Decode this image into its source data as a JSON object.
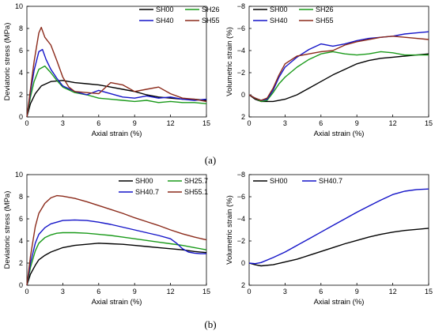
{
  "panel_labels": [
    "(a)",
    "(b)"
  ],
  "chart_data": [
    {
      "type": "line",
      "xlabel": "Axial strain (%)",
      "ylabel": "Deviatoric stress (MPa)",
      "xlim": [
        0,
        15
      ],
      "ylim": [
        0,
        10
      ],
      "xticks": [
        "0",
        "3",
        "6",
        "9",
        "12",
        "15"
      ],
      "yticks": [
        "0",
        "2",
        "4",
        "6",
        "8",
        "10"
      ],
      "grid": false,
      "legend": "top-right, two columns",
      "series": [
        {
          "name": "SH00",
          "color": "#000000",
          "x": [
            0,
            0.3,
            0.7,
            1.2,
            2,
            3,
            4,
            5,
            6,
            7,
            8,
            9,
            10,
            11,
            12,
            13,
            14,
            15
          ],
          "y": [
            0,
            1.2,
            2.1,
            2.8,
            3.2,
            3.3,
            3.1,
            3.0,
            2.9,
            2.7,
            2.5,
            2.3,
            2.0,
            1.8,
            1.7,
            1.6,
            1.6,
            1.5
          ]
        },
        {
          "name": "SH26",
          "color": "#1a9a1a",
          "x": [
            0,
            0.3,
            0.6,
            1,
            1.5,
            2,
            2.5,
            3,
            4,
            5,
            6,
            7,
            8,
            9,
            10,
            11,
            12,
            13,
            14,
            15
          ],
          "y": [
            0,
            1.8,
            3.2,
            4.3,
            4.6,
            4.0,
            3.3,
            2.7,
            2.2,
            2.0,
            1.7,
            1.6,
            1.5,
            1.4,
            1.5,
            1.3,
            1.4,
            1.3,
            1.3,
            1.2
          ]
        },
        {
          "name": "SH40",
          "color": "#1414c8",
          "x": [
            0,
            0.3,
            0.6,
            1,
            1.3,
            1.6,
            2,
            2.5,
            3,
            4,
            5,
            6,
            7,
            8,
            9,
            10,
            11,
            12,
            13,
            14,
            15
          ],
          "y": [
            0,
            2.2,
            4.2,
            5.9,
            6.1,
            5.2,
            4.3,
            3.5,
            2.8,
            2.3,
            2.0,
            2.4,
            2.1,
            1.8,
            1.7,
            1.9,
            1.7,
            1.8,
            1.6,
            1.5,
            1.6
          ]
        },
        {
          "name": "SH55",
          "color": "#8b2a1a",
          "x": [
            0,
            0.3,
            0.6,
            1,
            1.2,
            1.5,
            2,
            2.5,
            3,
            3.5,
            4,
            5,
            6,
            7,
            8,
            9,
            10,
            11,
            12,
            13,
            14,
            15
          ],
          "y": [
            0,
            2.5,
            5.0,
            7.6,
            8.1,
            7.2,
            6.5,
            5.1,
            3.6,
            2.7,
            2.3,
            2.2,
            2.1,
            3.1,
            2.9,
            2.3,
            2.5,
            2.7,
            2.1,
            1.7,
            1.6,
            1.4
          ]
        }
      ]
    },
    {
      "type": "line",
      "xlabel": "Axial strain (%)",
      "ylabel": "Volumetric strain (%)",
      "xlim": [
        0,
        15
      ],
      "ylim": [
        2,
        -8
      ],
      "y_axis": "inverted",
      "xticks": [
        "0",
        "3",
        "6",
        "9",
        "12",
        "15"
      ],
      "yticks": [
        "−8",
        "−6",
        "−4",
        "−2",
        "0",
        "2"
      ],
      "grid": false,
      "legend": "top-left, two columns",
      "series": [
        {
          "name": "SH00",
          "color": "#000000",
          "x": [
            0,
            0.5,
            1,
            1.5,
            2,
            3,
            4,
            5,
            6,
            7,
            8,
            9,
            10,
            11,
            12,
            13,
            14,
            15
          ],
          "y": [
            0,
            0.4,
            0.6,
            0.6,
            0.6,
            0.4,
            0.0,
            -0.6,
            -1.2,
            -1.8,
            -2.3,
            -2.8,
            -3.1,
            -3.3,
            -3.4,
            -3.5,
            -3.6,
            -3.7
          ]
        },
        {
          "name": "SH26",
          "color": "#1a9a1a",
          "x": [
            0,
            0.5,
            1,
            1.5,
            2,
            2.5,
            3,
            4,
            5,
            6,
            7,
            8,
            9,
            10,
            11,
            12,
            13,
            14,
            15
          ],
          "y": [
            0,
            0.3,
            0.6,
            0.5,
            -0.2,
            -1.0,
            -1.6,
            -2.5,
            -3.2,
            -3.7,
            -3.9,
            -3.7,
            -3.6,
            -3.7,
            -3.9,
            -3.8,
            -3.6,
            -3.6,
            -3.6
          ]
        },
        {
          "name": "SH40",
          "color": "#1414c8",
          "x": [
            0,
            0.5,
            1,
            1.5,
            2,
            2.5,
            3,
            4,
            5,
            6,
            7,
            8,
            9,
            10,
            11,
            12,
            13,
            14,
            15
          ],
          "y": [
            0,
            0.3,
            0.5,
            0.4,
            -0.4,
            -1.6,
            -2.5,
            -3.4,
            -4.1,
            -4.6,
            -4.4,
            -4.6,
            -4.9,
            -5.1,
            -5.2,
            -5.3,
            -5.5,
            -5.6,
            -5.7
          ]
        },
        {
          "name": "SH55",
          "color": "#8b2a1a",
          "x": [
            0,
            0.5,
            1,
            1.5,
            2,
            2.5,
            3,
            4,
            5,
            6,
            7,
            8,
            9,
            10,
            11,
            12,
            13,
            14,
            15
          ],
          "y": [
            0,
            0.3,
            0.5,
            0.3,
            -0.6,
            -1.8,
            -2.8,
            -3.5,
            -3.7,
            -3.9,
            -4.0,
            -4.5,
            -4.8,
            -5.0,
            -5.2,
            -5.3,
            -5.2,
            -5.1,
            -5.0
          ]
        }
      ]
    },
    {
      "type": "line",
      "xlabel": "Axial strain (%)",
      "ylabel": "Deviatoric stress (MPa)",
      "xlim": [
        0,
        15
      ],
      "ylim": [
        0,
        10
      ],
      "xticks": [
        "0",
        "3",
        "6",
        "9",
        "12",
        "15"
      ],
      "yticks": [
        "0",
        "2",
        "4",
        "6",
        "8",
        "10"
      ],
      "grid": false,
      "legend": "top-right, two columns",
      "series": [
        {
          "name": "SH00",
          "color": "#000000",
          "x": [
            0,
            0.3,
            0.7,
            1,
            1.5,
            2,
            3,
            4,
            5,
            6,
            7,
            8,
            9,
            10,
            11,
            12,
            13,
            14,
            15
          ],
          "y": [
            0,
            1.0,
            1.8,
            2.3,
            2.7,
            3.0,
            3.4,
            3.6,
            3.7,
            3.8,
            3.75,
            3.7,
            3.6,
            3.5,
            3.4,
            3.3,
            3.2,
            3.05,
            2.95
          ]
        },
        {
          "name": "SH25.7",
          "color": "#1a9a1a",
          "x": [
            0,
            0.3,
            0.7,
            1,
            1.5,
            2,
            2.5,
            3,
            4,
            5,
            6,
            7,
            8,
            9,
            10,
            11,
            12,
            13,
            14,
            15
          ],
          "y": [
            0,
            1.6,
            3.1,
            3.8,
            4.3,
            4.55,
            4.7,
            4.75,
            4.75,
            4.7,
            4.6,
            4.5,
            4.35,
            4.2,
            4.05,
            3.9,
            3.75,
            3.6,
            3.4,
            3.2
          ]
        },
        {
          "name": "SH40.7",
          "color": "#1414c8",
          "x": [
            0,
            0.3,
            0.7,
            1,
            1.5,
            2,
            3,
            4,
            5,
            6,
            7,
            8,
            9,
            10,
            11,
            12,
            12.5,
            13,
            13.5,
            14,
            14.5,
            15
          ],
          "y": [
            0,
            2.0,
            3.8,
            4.6,
            5.2,
            5.55,
            5.85,
            5.9,
            5.85,
            5.7,
            5.5,
            5.25,
            5.0,
            4.75,
            4.5,
            4.2,
            3.8,
            3.3,
            3.0,
            2.9,
            2.85,
            2.85
          ]
        },
        {
          "name": "SH55.1",
          "color": "#8b2a1a",
          "x": [
            0,
            0.3,
            0.7,
            1,
            1.5,
            2,
            2.5,
            3,
            4,
            5,
            6,
            7,
            8,
            9,
            10,
            11,
            12,
            13,
            14,
            15
          ],
          "y": [
            0,
            2.6,
            5.3,
            6.5,
            7.4,
            7.9,
            8.1,
            8.05,
            7.85,
            7.55,
            7.2,
            6.85,
            6.5,
            6.1,
            5.75,
            5.4,
            5.0,
            4.65,
            4.35,
            4.1
          ]
        }
      ]
    },
    {
      "type": "line",
      "xlabel": "Axial strain (%)",
      "ylabel": "Volumetric strain (%)",
      "xlim": [
        0,
        15
      ],
      "ylim": [
        2,
        -8
      ],
      "y_axis": "inverted",
      "xticks": [
        "0",
        "3",
        "6",
        "9",
        "12",
        "15"
      ],
      "yticks": [
        "−8",
        "−6",
        "−4",
        "−2",
        "0",
        "2"
      ],
      "grid": false,
      "legend": "top-left, two columns",
      "series": [
        {
          "name": "SH00",
          "color": "#000000",
          "x": [
            0,
            0.5,
            1,
            2,
            3,
            4,
            5,
            6,
            7,
            8,
            9,
            10,
            11,
            12,
            13,
            14,
            15
          ],
          "y": [
            0,
            0.15,
            0.25,
            0.15,
            -0.1,
            -0.35,
            -0.7,
            -1.05,
            -1.4,
            -1.75,
            -2.05,
            -2.35,
            -2.6,
            -2.8,
            -2.95,
            -3.05,
            -3.15
          ]
        },
        {
          "name": "SH40.7",
          "color": "#1414c8",
          "x": [
            0,
            0.5,
            1,
            2,
            3,
            4,
            5,
            6,
            7,
            8,
            9,
            10,
            11,
            12,
            13,
            14,
            15
          ],
          "y": [
            0,
            0.05,
            -0.05,
            -0.5,
            -1.0,
            -1.6,
            -2.2,
            -2.8,
            -3.4,
            -4.0,
            -4.6,
            -5.15,
            -5.7,
            -6.2,
            -6.5,
            -6.65,
            -6.7
          ]
        }
      ]
    }
  ]
}
